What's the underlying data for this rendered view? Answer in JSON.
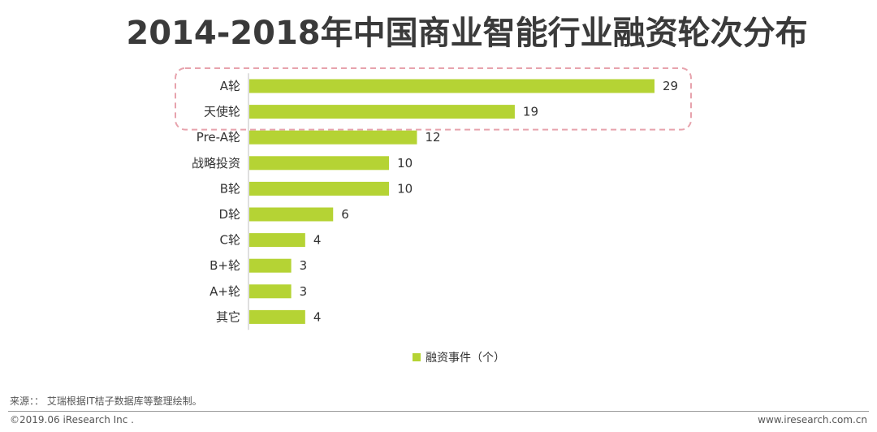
{
  "colors": {
    "bar": "#b5d334",
    "highlight_border": "#e7a3ad",
    "title": "#3a3a3a",
    "text": "#333333"
  },
  "chart_data": {
    "type": "bar",
    "orientation": "horizontal",
    "title": "2014-2018年中国商业智能行业融资轮次分布",
    "categories": [
      "A轮",
      "天使轮",
      "Pre-A轮",
      "战略投资",
      "B轮",
      "D轮",
      "C轮",
      "B+轮",
      "A+轮",
      "其它"
    ],
    "values": [
      29,
      19,
      12,
      10,
      10,
      6,
      4,
      3,
      3,
      4
    ],
    "legend": "融资事件（个）",
    "highlighted_categories": [
      "A轮",
      "天使轮"
    ],
    "xlabel": "",
    "ylabel": "",
    "xlim": [
      0,
      29
    ]
  },
  "footer": {
    "source": "来源：：  艾瑞根据IT桔子数据库等整理绘制。",
    "copyright": "©2019.06 iResearch Inc .",
    "website": "www.iresearch.com.cn"
  }
}
